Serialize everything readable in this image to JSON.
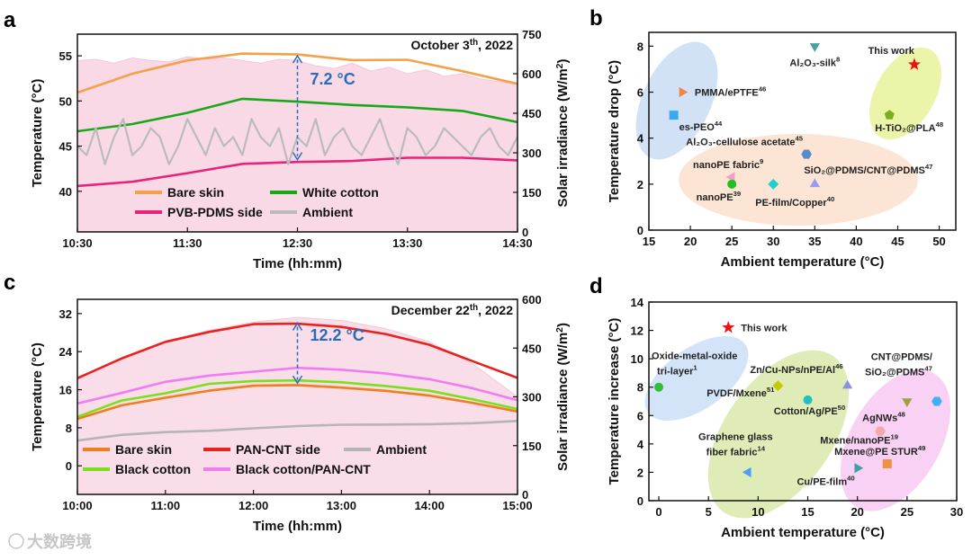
{
  "watermark": "大数跨境",
  "chart_data": [
    {
      "panel": "a",
      "type": "line",
      "title": "October 3th, 2022",
      "title_main": "October 3",
      "title_sup": "th",
      "title_end": ", 2022",
      "xlabel": "Time (hh:mm)",
      "ylabel": "Temperature (°C)",
      "y2label": "Solar irradiance (W/m²)",
      "y2label_main": "Solar irradiance (W/m",
      "y2label_sup": "2",
      "y2label_end": ")",
      "xlim": [
        10.5,
        14.5
      ],
      "ylim": [
        35.5,
        57.4
      ],
      "y2lim": [
        0,
        750
      ],
      "xticks": [
        10.5,
        11.5,
        12.5,
        13.5,
        14.5
      ],
      "xticklabels": [
        "10:30",
        "11:30",
        "12:30",
        "13:30",
        "14:30"
      ],
      "yticks": [
        40,
        45,
        50,
        55
      ],
      "y2ticks": [
        0,
        150,
        300,
        450,
        600,
        750
      ],
      "annotation": {
        "text": "7.2 °C",
        "x": 12.5,
        "y_from": 55,
        "y_to": 43.5
      },
      "irradiance": {
        "x_start": 10.5,
        "x_step": 0.1667,
        "values": [
          650,
          655,
          640,
          660,
          650,
          645,
          665,
          655,
          660,
          650,
          640,
          655,
          650,
          630,
          620,
          640,
          610,
          625,
          600,
          615,
          590,
          600,
          580,
          570,
          560
        ],
        "color": "#f9d9e6"
      },
      "series": [
        {
          "name": "Bare skin",
          "color": "#f5a04a",
          "x": [
            10.5,
            11,
            11.5,
            12,
            12.5,
            13,
            13.5,
            14,
            14.5
          ],
          "values": [
            50.8,
            53.2,
            54.5,
            55,
            55,
            54.5,
            54.8,
            53.5,
            52
          ]
        },
        {
          "name": "White cotton",
          "color": "#1aa71a",
          "x": [
            10.5,
            11,
            11.5,
            12,
            12.5,
            13,
            13.5,
            14,
            14.5
          ],
          "values": [
            46.5,
            47.7,
            48.6,
            50.2,
            50.1,
            49.8,
            49.5,
            49,
            47.8
          ]
        },
        {
          "name": "PVB-PDMS side",
          "color": "#e8237a",
          "x": [
            10.5,
            11,
            11.5,
            12,
            12.5,
            13,
            13.5,
            14,
            14.5
          ],
          "values": [
            40.5,
            41.3,
            42,
            42.8,
            43.3,
            43.6,
            43.8,
            43.6,
            43.2
          ]
        },
        {
          "name": "Ambient",
          "color": "#bbbbbb",
          "x_start": 10.5,
          "x_step": 0.0833,
          "values": [
            45,
            44,
            47,
            43,
            46,
            48,
            44,
            45,
            47,
            46,
            43,
            45,
            48,
            46,
            44,
            47,
            45,
            46,
            44,
            48,
            46,
            45,
            47,
            43,
            46,
            45,
            48,
            44,
            46,
            47,
            45,
            44,
            46,
            48,
            45,
            43,
            47,
            46,
            44,
            45,
            47,
            46,
            45,
            44,
            46,
            47,
            45,
            44,
            46
          ]
        }
      ],
      "legend": "bottom-inside"
    },
    {
      "panel": "b",
      "type": "scatter",
      "xlabel": "Ambient temperature (°C)",
      "ylabel": "Temperature drop (°C)",
      "xlim": [
        15,
        52
      ],
      "ylim": [
        0,
        8.6
      ],
      "xticks": [
        15,
        20,
        25,
        30,
        35,
        40,
        45,
        50
      ],
      "yticks": [
        0,
        2,
        4,
        6,
        8
      ],
      "points": [
        {
          "label": "PMMA/ePTFE",
          "ref": "46",
          "x": 19,
          "y": 6,
          "marker": "tri-right",
          "color": "#f5824a"
        },
        {
          "label": "es-PEO",
          "ref": "44",
          "x": 18,
          "y": 5,
          "marker": "square",
          "color": "#3aaaf0"
        },
        {
          "label": "Al₂O₃-silk",
          "ref": "8",
          "x": 35,
          "y": 8,
          "marker": "tri-down",
          "color": "#4aa0a0"
        },
        {
          "label": "This work",
          "ref": "",
          "x": 47,
          "y": 7.2,
          "marker": "star",
          "color": "#ee1111"
        },
        {
          "label": "H-TiO₂@PLA",
          "ref": "48",
          "x": 44,
          "y": 5,
          "marker": "pentagon",
          "color": "#7ab020"
        },
        {
          "label": "Al₂O₃-cellulose acetate",
          "ref": "45",
          "x": 34,
          "y": 3.3,
          "marker": "hexagon",
          "color": "#5a8ac8"
        },
        {
          "label": "nanoPE fabric",
          "ref": "9",
          "x": 25,
          "y": 2.3,
          "marker": "tri-left",
          "color": "#f0a0c8"
        },
        {
          "label": "nanoPE",
          "ref": "39",
          "x": 25,
          "y": 2,
          "marker": "circle",
          "color": "#20c020"
        },
        {
          "label": "PE-film/Copper",
          "ref": "40",
          "x": 30,
          "y": 2,
          "marker": "diamond",
          "color": "#20d0d0"
        },
        {
          "label": "SiO₂@PDMS/CNT@PDMS",
          "ref": "47",
          "x": 35,
          "y": 2,
          "marker": "tri-up",
          "color": "#9a9af0"
        }
      ]
    },
    {
      "panel": "c",
      "type": "line",
      "title": "December 22th, 2022",
      "title_main": "December 22",
      "title_sup": "th",
      "title_end": ", 2022",
      "xlabel": "Time (hh:mm)",
      "ylabel": "Temperature (°C)",
      "y2label": "Solar irradiance (W/m²)",
      "y2label_main": "Solar irradiance (W/m",
      "y2label_sup": "2",
      "y2label_end": ")",
      "xlim": [
        10,
        15
      ],
      "ylim": [
        -6,
        35
      ],
      "y2lim": [
        0,
        600
      ],
      "xticks": [
        10,
        11,
        12,
        13,
        14,
        15
      ],
      "xticklabels": [
        "10:00",
        "11:00",
        "12:00",
        "13:00",
        "14:00",
        "15:00"
      ],
      "yticks": [
        0,
        8,
        16,
        24,
        32
      ],
      "y2ticks": [
        0,
        150,
        300,
        450,
        600
      ],
      "annotation": {
        "text": "12.2 °C",
        "x": 12.5,
        "y_from": 30,
        "y_to": 17.4
      },
      "irradiance": {
        "x_start": 10,
        "x_step": 0.5,
        "values": [
          360,
          420,
          470,
          505,
          530,
          545,
          535,
          510,
          470,
          400,
          300
        ],
        "color": "#f9dde8"
      },
      "series": [
        {
          "name": "Bare skin",
          "color": "#f07d1e",
          "x": [
            10,
            10.5,
            11,
            11.5,
            12,
            12.5,
            13,
            13.5,
            14,
            14.5,
            15
          ],
          "values": [
            10,
            12.5,
            14.5,
            15.8,
            16.6,
            17,
            16.6,
            16,
            15,
            13.3,
            11.3
          ]
        },
        {
          "name": "PAN-CNT side",
          "color": "#e8231f",
          "x": [
            10,
            10.5,
            11,
            11.5,
            12,
            12.5,
            13,
            13.5,
            14,
            14.5,
            15
          ],
          "values": [
            18.5,
            22.8,
            26,
            28.2,
            29.6,
            30,
            29.4,
            27.8,
            25.2,
            22,
            18.6
          ]
        },
        {
          "name": "Ambient",
          "color": "#b5b5b5",
          "x": [
            10,
            10.5,
            11,
            11.5,
            12,
            12.5,
            13,
            13.5,
            14,
            14.5,
            15
          ],
          "values": [
            5.5,
            6.3,
            7,
            7.6,
            8,
            8.2,
            8.4,
            8.7,
            9,
            9.1,
            9.3
          ]
        },
        {
          "name": "Black cotton",
          "color": "#7ae01a",
          "x": [
            10,
            10.5,
            11,
            11.5,
            12,
            12.5,
            13,
            13.5,
            14,
            14.5,
            15
          ],
          "values": [
            10.5,
            13.5,
            15.5,
            17,
            17.8,
            18.2,
            17.8,
            17,
            16,
            14.2,
            12
          ]
        },
        {
          "name": "Black cotton/PAN-CNT",
          "color": "#f07df0",
          "x": [
            10,
            10.5,
            11,
            11.5,
            12,
            12.5,
            13,
            13.5,
            14,
            14.5,
            15
          ],
          "values": [
            13,
            15.5,
            17.5,
            19,
            20,
            20.5,
            20,
            19.2,
            18,
            16.2,
            14
          ]
        }
      ],
      "legend": "bottom-inside"
    },
    {
      "panel": "d",
      "type": "scatter",
      "xlabel": "Ambient temperature (°C)",
      "ylabel": "Temperature increase (°C)",
      "xlim": [
        -1,
        30
      ],
      "ylim": [
        0,
        14
      ],
      "xticks": [
        0,
        5,
        10,
        15,
        20,
        25,
        30
      ],
      "yticks": [
        0,
        2,
        4,
        6,
        8,
        10,
        12,
        14
      ],
      "points": [
        {
          "label": "This work",
          "ref": "",
          "x": 7,
          "y": 12.2,
          "marker": "star",
          "color": "#ee1111"
        },
        {
          "label": "Oxide-metal-oxide",
          "label2": "tri-layer",
          "ref": "1",
          "x": 0,
          "y": 8,
          "marker": "circle",
          "color": "#30c030"
        },
        {
          "label": "Zn/Cu-NPs/nPE/Al",
          "ref": "46",
          "x": 19,
          "y": 8.1,
          "marker": "tri-up",
          "color": "#9090e0"
        },
        {
          "label": "PVDF/Mxene",
          "ref": "51",
          "x": 12,
          "y": 8.1,
          "marker": "diamond",
          "color": "#c8c800"
        },
        {
          "label": "Cotton/Ag/PE",
          "ref": "50",
          "x": 15,
          "y": 7.1,
          "marker": "circle",
          "color": "#20c0c0"
        },
        {
          "label": "CNT@PDMS/",
          "label2": "SiO₂@PDMS",
          "ref": "47",
          "x": 28,
          "y": 7,
          "marker": "hexagon",
          "color": "#40b0f0"
        },
        {
          "label": "AgNWs",
          "ref": "48",
          "x": 25,
          "y": 7,
          "marker": "tri-down",
          "color": "#a0a040"
        },
        {
          "label": "Mxene/nanoPE",
          "ref": "19",
          "x": 22.3,
          "y": 4.9,
          "marker": "hexagon",
          "color": "#f4a8a8"
        },
        {
          "label": "Mxene@PE STUR",
          "ref": "49",
          "x": 23,
          "y": 2.6,
          "marker": "square",
          "color": "#f09040"
        },
        {
          "label": "Cu/PE-film",
          "ref": "40",
          "x": 20,
          "y": 2.3,
          "marker": "tri-right",
          "color": "#40a0a0"
        },
        {
          "label": "Graphene glass",
          "label2": "fiber fabric",
          "ref": "14",
          "x": 9,
          "y": 2,
          "marker": "tri-left",
          "color": "#4aa0f0"
        }
      ]
    }
  ]
}
